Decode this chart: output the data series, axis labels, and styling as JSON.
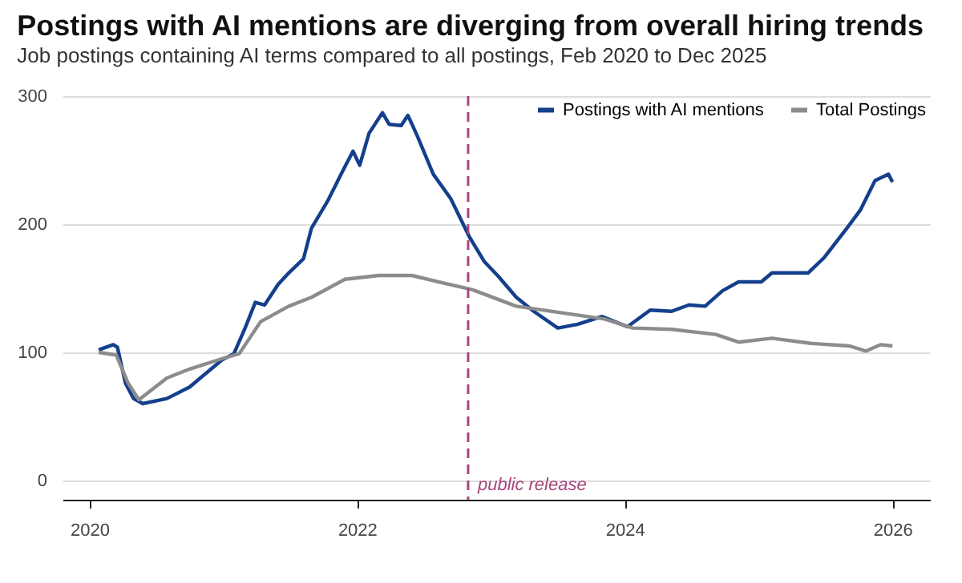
{
  "chart_data": {
    "type": "line",
    "title": "Postings with AI mentions are diverging from overall hiring trends",
    "subtitle": "Job postings containing AI terms compared to all postings, Feb 2020 to Dec 2025",
    "xlim": [
      2019.8,
      2026.28
    ],
    "xticks": [
      2020,
      2022,
      2024,
      2026
    ],
    "ylim": [
      -15,
      300
    ],
    "yticks": [
      0,
      100,
      200,
      300
    ],
    "grid": "y",
    "legend": "top right",
    "line_style": "solid",
    "marker": "none",
    "series": [
      {
        "name": "Postings with AI mentions",
        "color": "#143f8c",
        "x": [
          2020.07,
          2020.18,
          2020.21,
          2020.27,
          2020.33,
          2020.4,
          2020.58,
          2020.75,
          2020.91,
          2020.99,
          2021.08,
          2021.16,
          2021.24,
          2021.31,
          2021.41,
          2021.49,
          2021.6,
          2021.66,
          2021.78,
          2021.89,
          2021.97,
          2022.02,
          2022.09,
          2022.19,
          2022.24,
          2022.33,
          2022.38,
          2022.45,
          2022.57,
          2022.7,
          2022.84,
          2022.95,
          2023.05,
          2023.19,
          2023.32,
          2023.5,
          2023.65,
          2023.83,
          2024.02,
          2024.19,
          2024.35,
          2024.48,
          2024.6,
          2024.73,
          2024.85,
          2025.02,
          2025.1,
          2025.22,
          2025.37,
          2025.49,
          2025.66,
          2025.76,
          2025.87,
          2025.97,
          2026.0
        ],
        "values": [
          102,
          106,
          104,
          76,
          64,
          60,
          64,
          73,
          87,
          94,
          99,
          118,
          139,
          137,
          153,
          162,
          173,
          197,
          218,
          241,
          257,
          246,
          271,
          287,
          278,
          277,
          285,
          269,
          239,
          220,
          190,
          171,
          160,
          143,
          132,
          119,
          122,
          128,
          120,
          133,
          132,
          137,
          136,
          148,
          155,
          155,
          162,
          162,
          162,
          174,
          197,
          211,
          234,
          239,
          233
        ]
      },
      {
        "name": "Total Postings",
        "color": "#8c8c8c",
        "x": [
          2020.07,
          2020.2,
          2020.29,
          2020.37,
          2020.58,
          2020.75,
          2020.99,
          2021.12,
          2021.28,
          2021.49,
          2021.66,
          2021.91,
          2022.16,
          2022.41,
          2022.65,
          2022.86,
          2023.19,
          2023.52,
          2023.85,
          2024.06,
          2024.35,
          2024.68,
          2024.85,
          2025.1,
          2025.39,
          2025.68,
          2025.8,
          2025.91,
          2026.0
        ],
        "values": [
          100,
          98,
          76,
          63,
          80,
          87,
          95,
          99,
          124,
          136,
          143,
          157,
          160,
          160,
          154,
          149,
          136,
          131,
          126,
          119,
          118,
          114,
          108,
          111,
          107,
          105,
          101,
          106,
          105
        ]
      }
    ],
    "ref_lines": [
      {
        "axis": "x",
        "value": 2022.83,
        "label": "public release",
        "color": "#a8457a",
        "line_style": "dashed"
      }
    ]
  }
}
